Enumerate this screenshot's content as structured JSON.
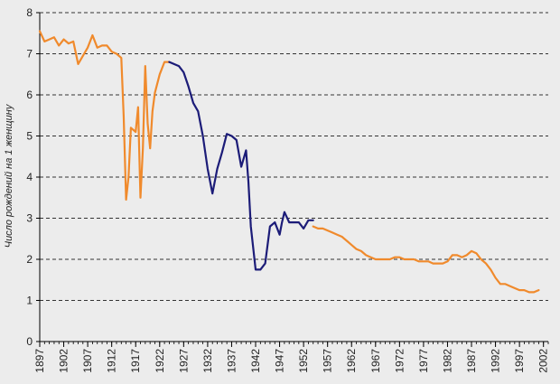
{
  "chart_data": {
    "type": "line",
    "title": "",
    "xlabel": "",
    "ylabel": "Число рождений на 1 женщину",
    "xlim": [
      1897,
      2003
    ],
    "ylim": [
      0,
      8
    ],
    "y_ticks": [
      0,
      1,
      2,
      3,
      4,
      5,
      6,
      7,
      8
    ],
    "x_ticks": [
      1897,
      1902,
      1907,
      1912,
      1917,
      1922,
      1927,
      1932,
      1937,
      1942,
      1947,
      1952,
      1957,
      1962,
      1967,
      1972,
      1977,
      1982,
      1987,
      1992,
      1997,
      2002
    ],
    "grid": {
      "horizontal": true,
      "style": "dashed"
    },
    "legend": "none",
    "series": [
      {
        "color": "#f08a2c",
        "x": [
          1897,
          1898,
          1899,
          1900,
          1901,
          1902,
          1903,
          1904,
          1905,
          1906,
          1907,
          1908,
          1909,
          1910,
          1911,
          1912,
          1913,
          1914,
          1914.5,
          1915,
          1915.5,
          1916,
          1917,
          1917.5,
          1918,
          1918.5,
          1919,
          1919.5,
          1920,
          1920.5,
          1921,
          1922,
          1923,
          1924
        ],
        "y": [
          7.55,
          7.3,
          7.35,
          7.4,
          7.2,
          7.35,
          7.25,
          7.3,
          6.75,
          6.95,
          7.15,
          7.45,
          7.15,
          7.2,
          7.2,
          7.05,
          7.0,
          6.9,
          5.5,
          3.45,
          4.0,
          5.2,
          5.1,
          5.7,
          3.5,
          4.7,
          6.7,
          5.3,
          4.7,
          5.6,
          6.05,
          6.5,
          6.8,
          6.8
        ]
      },
      {
        "color": "#1c1c78",
        "x": [
          1924,
          1925,
          1926,
          1927,
          1928,
          1929,
          1930,
          1931,
          1932,
          1933,
          1934,
          1935,
          1936,
          1937,
          1938,
          1939,
          1940,
          1940.5,
          1941,
          1942,
          1943,
          1944,
          1945,
          1946,
          1947,
          1947.5,
          1948,
          1949,
          1950,
          1951,
          1952,
          1953,
          1954
        ],
        "y": [
          6.8,
          6.75,
          6.7,
          6.55,
          6.2,
          5.8,
          5.6,
          5.0,
          4.2,
          3.6,
          4.2,
          4.6,
          5.05,
          5.0,
          4.9,
          4.25,
          4.65,
          3.9,
          2.8,
          1.75,
          1.75,
          1.9,
          2.8,
          2.9,
          2.6,
          2.9,
          3.15,
          2.9,
          2.9,
          2.9,
          2.75,
          2.95,
          2.95
        ]
      },
      {
        "color": "#f08a2c",
        "x": [
          1954,
          1955,
          1956,
          1957,
          1958,
          1959,
          1960,
          1961,
          1962,
          1963,
          1964,
          1965,
          1966,
          1967,
          1968,
          1969,
          1970,
          1971,
          1972,
          1973,
          1974,
          1975,
          1976,
          1977,
          1978,
          1979,
          1980,
          1981,
          1982,
          1983,
          1984,
          1985,
          1986,
          1987,
          1988,
          1989,
          1990,
          1991,
          1992,
          1993,
          1994,
          1995,
          1996,
          1997,
          1998,
          1999,
          2000,
          2001
        ],
        "y": [
          2.8,
          2.75,
          2.75,
          2.7,
          2.65,
          2.6,
          2.55,
          2.45,
          2.35,
          2.25,
          2.2,
          2.1,
          2.05,
          2.0,
          2.0,
          2.0,
          2.0,
          2.05,
          2.05,
          2.0,
          2.0,
          2.0,
          1.95,
          1.95,
          1.95,
          1.9,
          1.9,
          1.9,
          1.95,
          2.1,
          2.1,
          2.05,
          2.1,
          2.2,
          2.15,
          2.0,
          1.9,
          1.75,
          1.55,
          1.4,
          1.4,
          1.35,
          1.3,
          1.25,
          1.25,
          1.2,
          1.2,
          1.25
        ]
      }
    ]
  },
  "colors": {
    "background": "#ececec",
    "axis": "#000000",
    "grid": "#333333"
  }
}
